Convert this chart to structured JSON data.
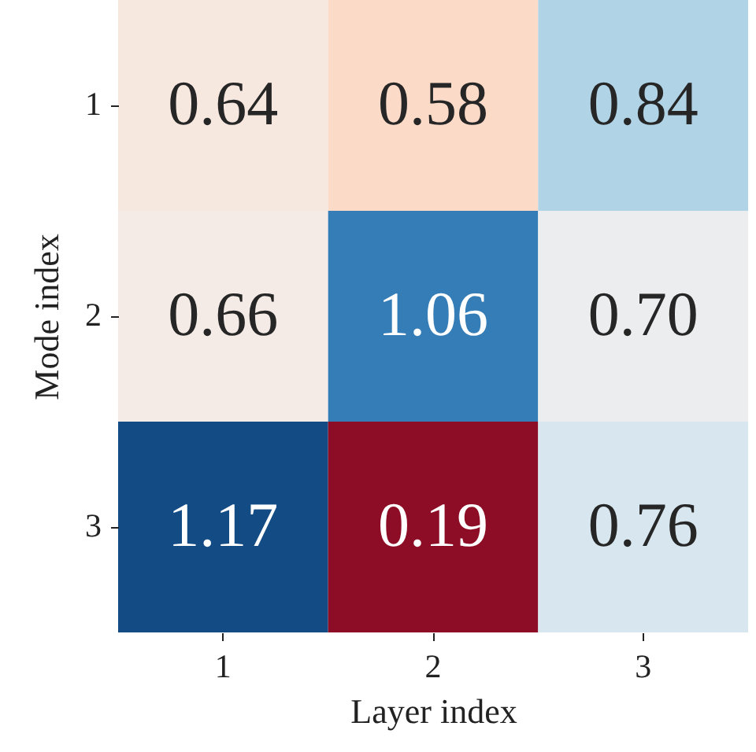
{
  "chart_data": {
    "type": "heatmap",
    "xlabel": "Layer index",
    "ylabel": "Mode index",
    "categories": [
      "1",
      "2",
      "3"
    ],
    "y_categories": [
      "1",
      "2",
      "3"
    ],
    "cells": [
      [
        0.64,
        0.58,
        0.84
      ],
      [
        0.66,
        1.06,
        0.7
      ],
      [
        1.17,
        0.19,
        0.76
      ]
    ],
    "cell_labels": [
      [
        "0.64",
        "0.58",
        "0.84"
      ],
      [
        "0.66",
        "1.06",
        "0.70"
      ],
      [
        "1.17",
        "0.19",
        "0.76"
      ]
    ],
    "data_labels": true
  }
}
